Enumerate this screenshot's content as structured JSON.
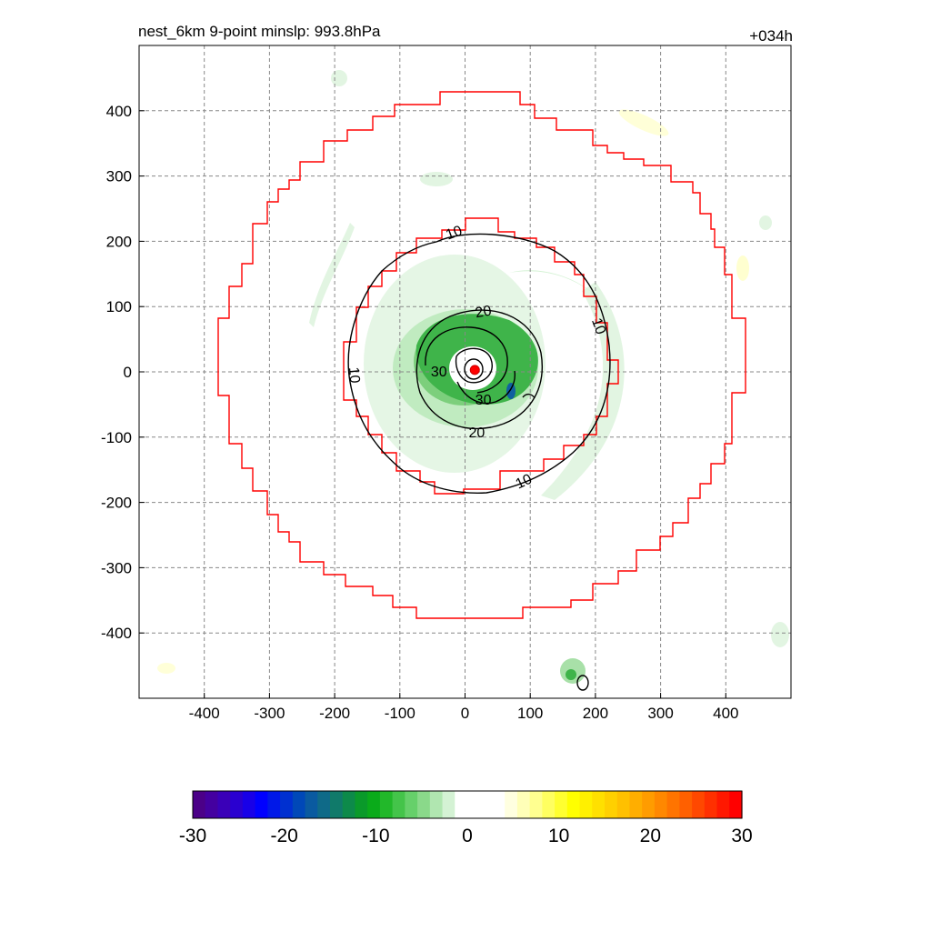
{
  "chart_data": {
    "type": "contour-map",
    "title_left": "nest_6km  9-point minslp: 993.8hPa",
    "title_right": "+034h",
    "xlim": [
      -500,
      500
    ],
    "ylim": [
      -500,
      500
    ],
    "grid": true,
    "x_ticks": [
      -400,
      -300,
      -200,
      -100,
      0,
      100,
      200,
      300,
      400
    ],
    "x_tick_labels": [
      "-400",
      "-300",
      "-200",
      "-100",
      "0",
      "100",
      "200",
      "300",
      "400"
    ],
    "y_ticks": [
      400,
      300,
      200,
      100,
      0,
      -100,
      -200,
      -300,
      -400
    ],
    "y_tick_labels": [
      "400",
      "300",
      "200",
      "100",
      "0",
      "-100",
      "-200",
      "-300",
      "-400"
    ],
    "storm_center": [
      15,
      3
    ],
    "contour_labels": [
      {
        "text": "10",
        "x": -17,
        "y": 213,
        "rot": -20
      },
      {
        "text": "10",
        "x": 205,
        "y": 70,
        "rot": 70
      },
      {
        "text": "10",
        "x": -170,
        "y": -5,
        "rot": 85
      },
      {
        "text": "10",
        "x": 90,
        "y": -168,
        "rot": -25
      },
      {
        "text": "20",
        "x": 28,
        "y": 92,
        "rot": -10
      },
      {
        "text": "20",
        "x": 18,
        "y": -93,
        "rot": 0
      },
      {
        "text": "30",
        "x": -40,
        "y": 0,
        "rot": 0
      },
      {
        "text": "30",
        "x": 28,
        "y": -43,
        "rot": 0
      }
    ],
    "colorbar": {
      "min": -30,
      "max": 30,
      "tick_values": [
        -30,
        -20,
        -10,
        0,
        10,
        20,
        30
      ],
      "tick_labels": [
        "-30",
        "-20",
        "-10",
        "0",
        "10",
        "20",
        "30"
      ],
      "colors": [
        "#4b0088",
        "#4400a0",
        "#3a00b8",
        "#2a00d0",
        "#1800e8",
        "#0000ff",
        "#0018e8",
        "#0030d0",
        "#0048b8",
        "#0a5aa0",
        "#0f6a88",
        "#107a6a",
        "#0d8a4a",
        "#0a9a2a",
        "#0aab1a",
        "#22b82a",
        "#44c44a",
        "#66d06a",
        "#8ad98a",
        "#b0e6b0",
        "#d4f2d4",
        "#ffffff",
        "#ffffff",
        "#ffffff",
        "#ffffff",
        "#ffffe0",
        "#ffffb8",
        "#ffff90",
        "#ffff60",
        "#ffff30",
        "#ffff00",
        "#fff000",
        "#ffe000",
        "#ffd000",
        "#ffc000",
        "#ffae00",
        "#ff9c00",
        "#ff8800",
        "#ff7400",
        "#ff6000",
        "#ff4800",
        "#ff3000",
        "#ff1800",
        "#ff0000"
      ]
    }
  }
}
